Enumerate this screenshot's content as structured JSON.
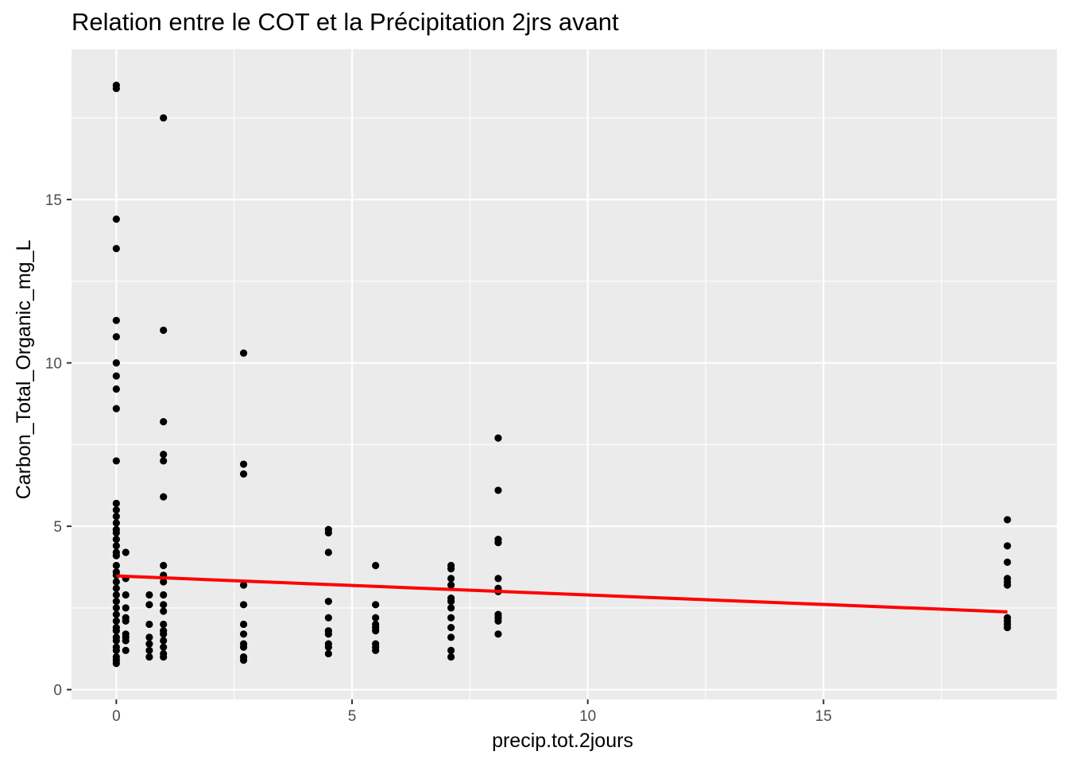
{
  "chart_data": {
    "type": "scatter",
    "title": "Relation entre le COT et la Précipitation 2jrs avant",
    "xlabel": "precip.tot.2jours",
    "ylabel": "Carbon_Total_Organic_mg_L",
    "xlim": [
      -0.95,
      19.95
    ],
    "ylim": [
      -0.3,
      19.6
    ],
    "x_ticks": [
      0,
      5,
      10,
      15
    ],
    "y_ticks": [
      0,
      5,
      10,
      15
    ],
    "x_minor": [
      2.5,
      7.5,
      12.5,
      17.5
    ],
    "y_minor": [
      2.5,
      7.5,
      12.5,
      17.5
    ],
    "grid": true,
    "colors": {
      "panel": "#ebebeb",
      "grid": "#ffffff",
      "points": "#000000",
      "trend": "#ff0000",
      "tick_text": "#4d4d4d"
    },
    "points": [
      {
        "x": 0,
        "y": 18.5
      },
      {
        "x": 0,
        "y": 18.4
      },
      {
        "x": 0,
        "y": 14.4
      },
      {
        "x": 0,
        "y": 13.5
      },
      {
        "x": 0,
        "y": 11.3
      },
      {
        "x": 0,
        "y": 10.8
      },
      {
        "x": 0,
        "y": 10.0
      },
      {
        "x": 0,
        "y": 9.6
      },
      {
        "x": 0,
        "y": 9.2
      },
      {
        "x": 0,
        "y": 8.6
      },
      {
        "x": 0,
        "y": 7.0
      },
      {
        "x": 0,
        "y": 5.7
      },
      {
        "x": 0,
        "y": 5.5
      },
      {
        "x": 0,
        "y": 5.3
      },
      {
        "x": 0,
        "y": 5.1
      },
      {
        "x": 0,
        "y": 4.9
      },
      {
        "x": 0,
        "y": 4.8
      },
      {
        "x": 0,
        "y": 4.6
      },
      {
        "x": 0,
        "y": 4.4
      },
      {
        "x": 0,
        "y": 4.2
      },
      {
        "x": 0,
        "y": 4.1
      },
      {
        "x": 0,
        "y": 3.8
      },
      {
        "x": 0,
        "y": 3.6
      },
      {
        "x": 0,
        "y": 3.5
      },
      {
        "x": 0,
        "y": 3.3
      },
      {
        "x": 0,
        "y": 3.1
      },
      {
        "x": 0,
        "y": 2.9
      },
      {
        "x": 0,
        "y": 2.7
      },
      {
        "x": 0,
        "y": 2.5
      },
      {
        "x": 0,
        "y": 2.3
      },
      {
        "x": 0,
        "y": 2.1
      },
      {
        "x": 0,
        "y": 1.9
      },
      {
        "x": 0,
        "y": 1.8
      },
      {
        "x": 0,
        "y": 1.6
      },
      {
        "x": 0,
        "y": 1.5
      },
      {
        "x": 0,
        "y": 1.3
      },
      {
        "x": 0,
        "y": 1.2
      },
      {
        "x": 0,
        "y": 1.0
      },
      {
        "x": 0,
        "y": 0.9
      },
      {
        "x": 0,
        "y": 0.8
      },
      {
        "x": 0.2,
        "y": 4.2
      },
      {
        "x": 0.2,
        "y": 3.4
      },
      {
        "x": 0.2,
        "y": 2.9
      },
      {
        "x": 0.2,
        "y": 2.5
      },
      {
        "x": 0.2,
        "y": 2.2
      },
      {
        "x": 0.2,
        "y": 2.1
      },
      {
        "x": 0.2,
        "y": 1.7
      },
      {
        "x": 0.2,
        "y": 1.6
      },
      {
        "x": 0.2,
        "y": 1.5
      },
      {
        "x": 0.2,
        "y": 1.2
      },
      {
        "x": 0.7,
        "y": 2.9
      },
      {
        "x": 0.7,
        "y": 2.6
      },
      {
        "x": 0.7,
        "y": 2.0
      },
      {
        "x": 0.7,
        "y": 1.6
      },
      {
        "x": 0.7,
        "y": 1.4
      },
      {
        "x": 0.7,
        "y": 1.2
      },
      {
        "x": 0.7,
        "y": 1.0
      },
      {
        "x": 1.0,
        "y": 17.5
      },
      {
        "x": 1.0,
        "y": 11.0
      },
      {
        "x": 1.0,
        "y": 8.2
      },
      {
        "x": 1.0,
        "y": 7.2
      },
      {
        "x": 1.0,
        "y": 7.0
      },
      {
        "x": 1.0,
        "y": 5.9
      },
      {
        "x": 1.0,
        "y": 3.8
      },
      {
        "x": 1.0,
        "y": 3.5
      },
      {
        "x": 1.0,
        "y": 3.3
      },
      {
        "x": 1.0,
        "y": 2.9
      },
      {
        "x": 1.0,
        "y": 2.6
      },
      {
        "x": 1.0,
        "y": 2.4
      },
      {
        "x": 1.0,
        "y": 2.0
      },
      {
        "x": 1.0,
        "y": 1.8
      },
      {
        "x": 1.0,
        "y": 1.7
      },
      {
        "x": 1.0,
        "y": 1.5
      },
      {
        "x": 1.0,
        "y": 1.3
      },
      {
        "x": 1.0,
        "y": 1.1
      },
      {
        "x": 1.0,
        "y": 1.0
      },
      {
        "x": 2.7,
        "y": 10.3
      },
      {
        "x": 2.7,
        "y": 6.9
      },
      {
        "x": 2.7,
        "y": 6.6
      },
      {
        "x": 2.7,
        "y": 3.2
      },
      {
        "x": 2.7,
        "y": 2.6
      },
      {
        "x": 2.7,
        "y": 2.0
      },
      {
        "x": 2.7,
        "y": 1.7
      },
      {
        "x": 2.7,
        "y": 1.4
      },
      {
        "x": 2.7,
        "y": 1.3
      },
      {
        "x": 2.7,
        "y": 1.0
      },
      {
        "x": 2.7,
        "y": 0.9
      },
      {
        "x": 4.5,
        "y": 4.9
      },
      {
        "x": 4.5,
        "y": 4.8
      },
      {
        "x": 4.5,
        "y": 4.2
      },
      {
        "x": 4.5,
        "y": 2.7
      },
      {
        "x": 4.5,
        "y": 2.2
      },
      {
        "x": 4.5,
        "y": 1.8
      },
      {
        "x": 4.5,
        "y": 1.7
      },
      {
        "x": 4.5,
        "y": 1.4
      },
      {
        "x": 4.5,
        "y": 1.3
      },
      {
        "x": 4.5,
        "y": 1.1
      },
      {
        "x": 5.5,
        "y": 3.8
      },
      {
        "x": 5.5,
        "y": 2.6
      },
      {
        "x": 5.5,
        "y": 2.2
      },
      {
        "x": 5.5,
        "y": 2.0
      },
      {
        "x": 5.5,
        "y": 1.9
      },
      {
        "x": 5.5,
        "y": 1.8
      },
      {
        "x": 5.5,
        "y": 1.4
      },
      {
        "x": 5.5,
        "y": 1.3
      },
      {
        "x": 5.5,
        "y": 1.2
      },
      {
        "x": 7.1,
        "y": 3.8
      },
      {
        "x": 7.1,
        "y": 3.7
      },
      {
        "x": 7.1,
        "y": 3.4
      },
      {
        "x": 7.1,
        "y": 3.2
      },
      {
        "x": 7.1,
        "y": 2.8
      },
      {
        "x": 7.1,
        "y": 2.7
      },
      {
        "x": 7.1,
        "y": 2.5
      },
      {
        "x": 7.1,
        "y": 2.2
      },
      {
        "x": 7.1,
        "y": 1.9
      },
      {
        "x": 7.1,
        "y": 1.6
      },
      {
        "x": 7.1,
        "y": 1.2
      },
      {
        "x": 7.1,
        "y": 1.0
      },
      {
        "x": 8.1,
        "y": 7.7
      },
      {
        "x": 8.1,
        "y": 6.1
      },
      {
        "x": 8.1,
        "y": 4.6
      },
      {
        "x": 8.1,
        "y": 4.5
      },
      {
        "x": 8.1,
        "y": 3.4
      },
      {
        "x": 8.1,
        "y": 3.1
      },
      {
        "x": 8.1,
        "y": 3.0
      },
      {
        "x": 8.1,
        "y": 2.3
      },
      {
        "x": 8.1,
        "y": 2.2
      },
      {
        "x": 8.1,
        "y": 2.1
      },
      {
        "x": 8.1,
        "y": 1.7
      },
      {
        "x": 18.9,
        "y": 5.2
      },
      {
        "x": 18.9,
        "y": 4.4
      },
      {
        "x": 18.9,
        "y": 3.9
      },
      {
        "x": 18.9,
        "y": 3.4
      },
      {
        "x": 18.9,
        "y": 3.3
      },
      {
        "x": 18.9,
        "y": 3.2
      },
      {
        "x": 18.9,
        "y": 2.2
      },
      {
        "x": 18.9,
        "y": 2.1
      },
      {
        "x": 18.9,
        "y": 2.0
      },
      {
        "x": 18.9,
        "y": 1.9
      }
    ],
    "trend_line": {
      "x": [
        0,
        18.9
      ],
      "y": [
        3.48,
        2.38
      ]
    }
  }
}
